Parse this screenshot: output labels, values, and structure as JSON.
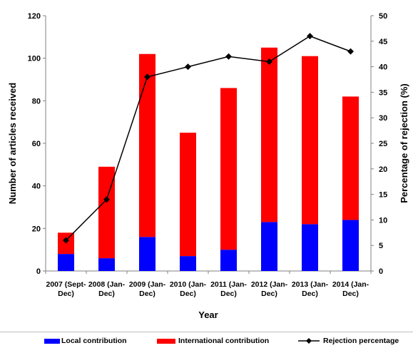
{
  "chart_data": {
    "type": "bar",
    "stacked": true,
    "categories": [
      [
        "2007 (Sept-",
        "Dec)"
      ],
      [
        "2008 (Jan-",
        "Dec)"
      ],
      [
        "2009 (Jan-",
        "Dec)"
      ],
      [
        "2010 (Jan-",
        "Dec)"
      ],
      [
        "2011 (Jan-",
        "Dec)"
      ],
      [
        "2012 (Jan-",
        "Dec)"
      ],
      [
        "2013 (Jan-",
        "Dec)"
      ],
      [
        "2014 (Jan-",
        "Dec)"
      ]
    ],
    "series": [
      {
        "name": "Local contribution",
        "type": "bar",
        "axis": "left",
        "color": "#0000ff",
        "values": [
          8,
          6,
          16,
          7,
          10,
          23,
          22,
          24
        ]
      },
      {
        "name": "International contribution",
        "type": "bar",
        "axis": "left",
        "color": "#ff0000",
        "values": [
          10,
          43,
          86,
          58,
          76,
          82,
          79,
          58
        ]
      },
      {
        "name": "Rejection percentage",
        "type": "line",
        "axis": "right",
        "color": "#000000",
        "marker": "diamond",
        "values": [
          6,
          14,
          38,
          40,
          42,
          41,
          46,
          43
        ]
      }
    ],
    "xlabel": "Year",
    "ylabel": "Number of articles received",
    "y2label": "Percentage of rejection (%)",
    "ylim": [
      0,
      120
    ],
    "y2lim": [
      0,
      50
    ],
    "yticks": [
      0,
      20,
      40,
      60,
      80,
      100,
      120
    ],
    "y2ticks": [
      0,
      5,
      10,
      15,
      20,
      25,
      30,
      35,
      40,
      45,
      50
    ],
    "grid": false,
    "legend": "bottom"
  }
}
